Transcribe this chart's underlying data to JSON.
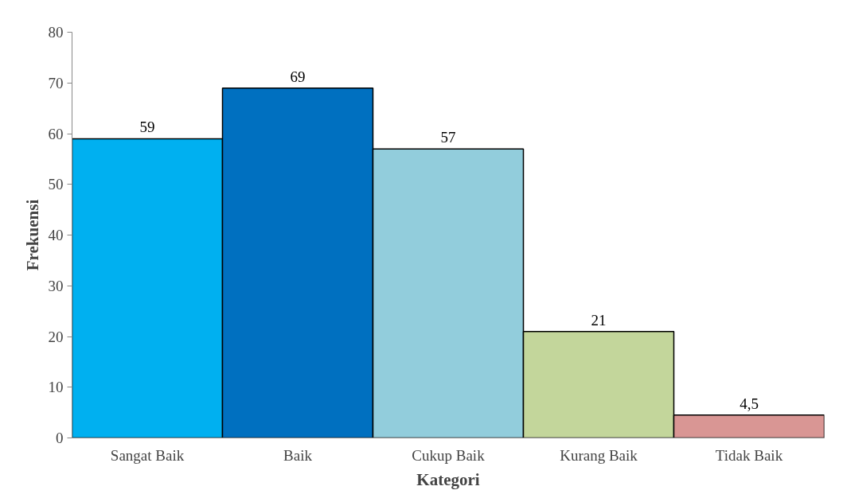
{
  "chart_data": {
    "type": "bar",
    "xlabel": "Kategori",
    "ylabel": "Frekuensi",
    "categories": [
      "Sangat Baik",
      "Baik",
      "Cukup Baik",
      "Kurang Baik",
      "Tidak Baik"
    ],
    "values": [
      59,
      69,
      57,
      21,
      4.5
    ],
    "colors": [
      "#00b0f0",
      "#0070c0",
      "#92cddc",
      "#c3d69b",
      "#d99694"
    ],
    "value_labels": [
      "59",
      "69",
      "57",
      "21",
      "4,5"
    ],
    "ylim": [
      0,
      80
    ],
    "yticks": [
      0,
      10,
      20,
      30,
      40,
      50,
      60,
      70,
      80
    ],
    "grid": false
  }
}
